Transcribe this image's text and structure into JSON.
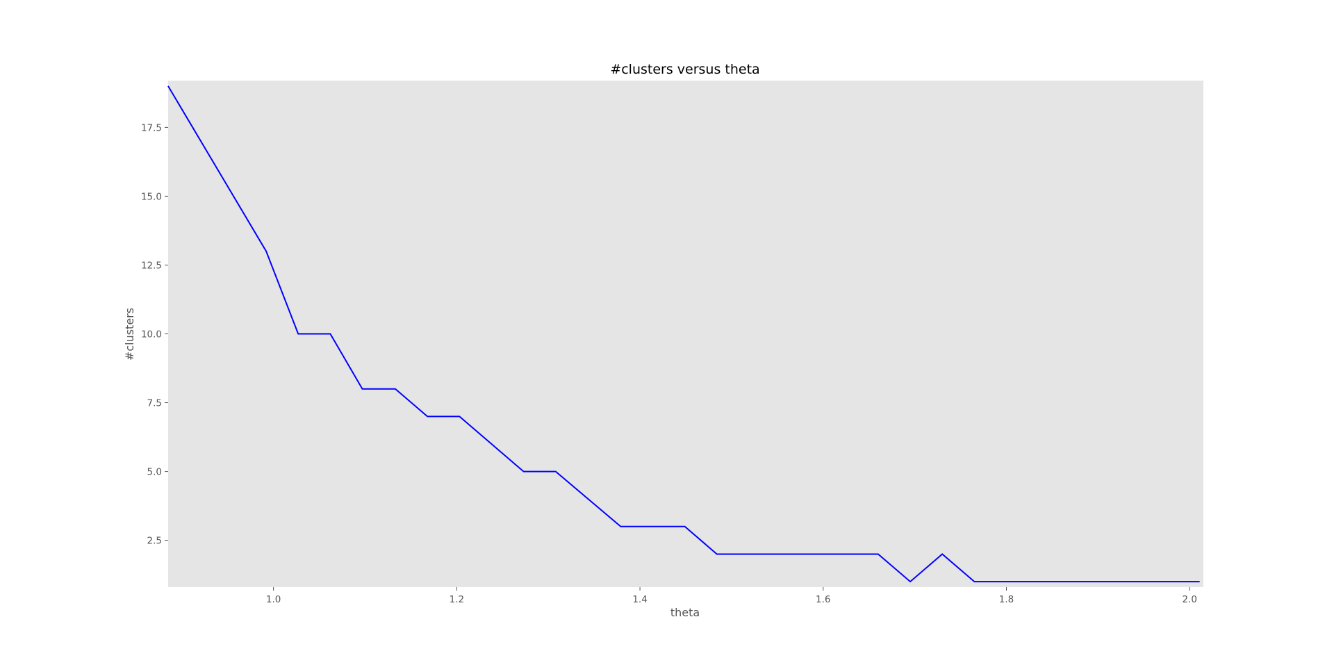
{
  "chart_data": {
    "type": "line",
    "title": "#clusters versus theta",
    "xlabel": "theta",
    "ylabel": "#clusters",
    "xlim": [
      0.885,
      2.015
    ],
    "ylim": [
      0.8,
      19.2
    ],
    "xticks": [
      1.0,
      1.2,
      1.4,
      1.6,
      1.8,
      2.0
    ],
    "xtick_labels": [
      "1.0",
      "1.2",
      "1.4",
      "1.6",
      "1.8",
      "2.0"
    ],
    "yticks": [
      2.5,
      5.0,
      7.5,
      10.0,
      12.5,
      15.0,
      17.5
    ],
    "ytick_labels": [
      "2.5",
      "5.0",
      "7.5",
      "10.0",
      "12.5",
      "15.0",
      "17.5"
    ],
    "grid": false,
    "background": "#e5e5e5",
    "series": [
      {
        "color": "#0000ff",
        "x": [
          0.885,
          0.992,
          1.027,
          1.062,
          1.097,
          1.133,
          1.168,
          1.203,
          1.273,
          1.308,
          1.379,
          1.449,
          1.484,
          1.519,
          1.554,
          1.589,
          1.625,
          1.66,
          1.695,
          1.73,
          1.765,
          1.8,
          1.836,
          1.871,
          1.906,
          1.941,
          1.976,
          2.011
        ],
        "y": [
          19,
          13,
          10,
          10,
          8,
          8,
          7,
          7,
          5,
          5,
          3,
          3,
          2,
          2,
          2,
          2,
          2,
          2,
          1,
          2,
          1,
          1,
          1,
          1,
          1,
          1,
          1,
          1
        ]
      }
    ]
  }
}
